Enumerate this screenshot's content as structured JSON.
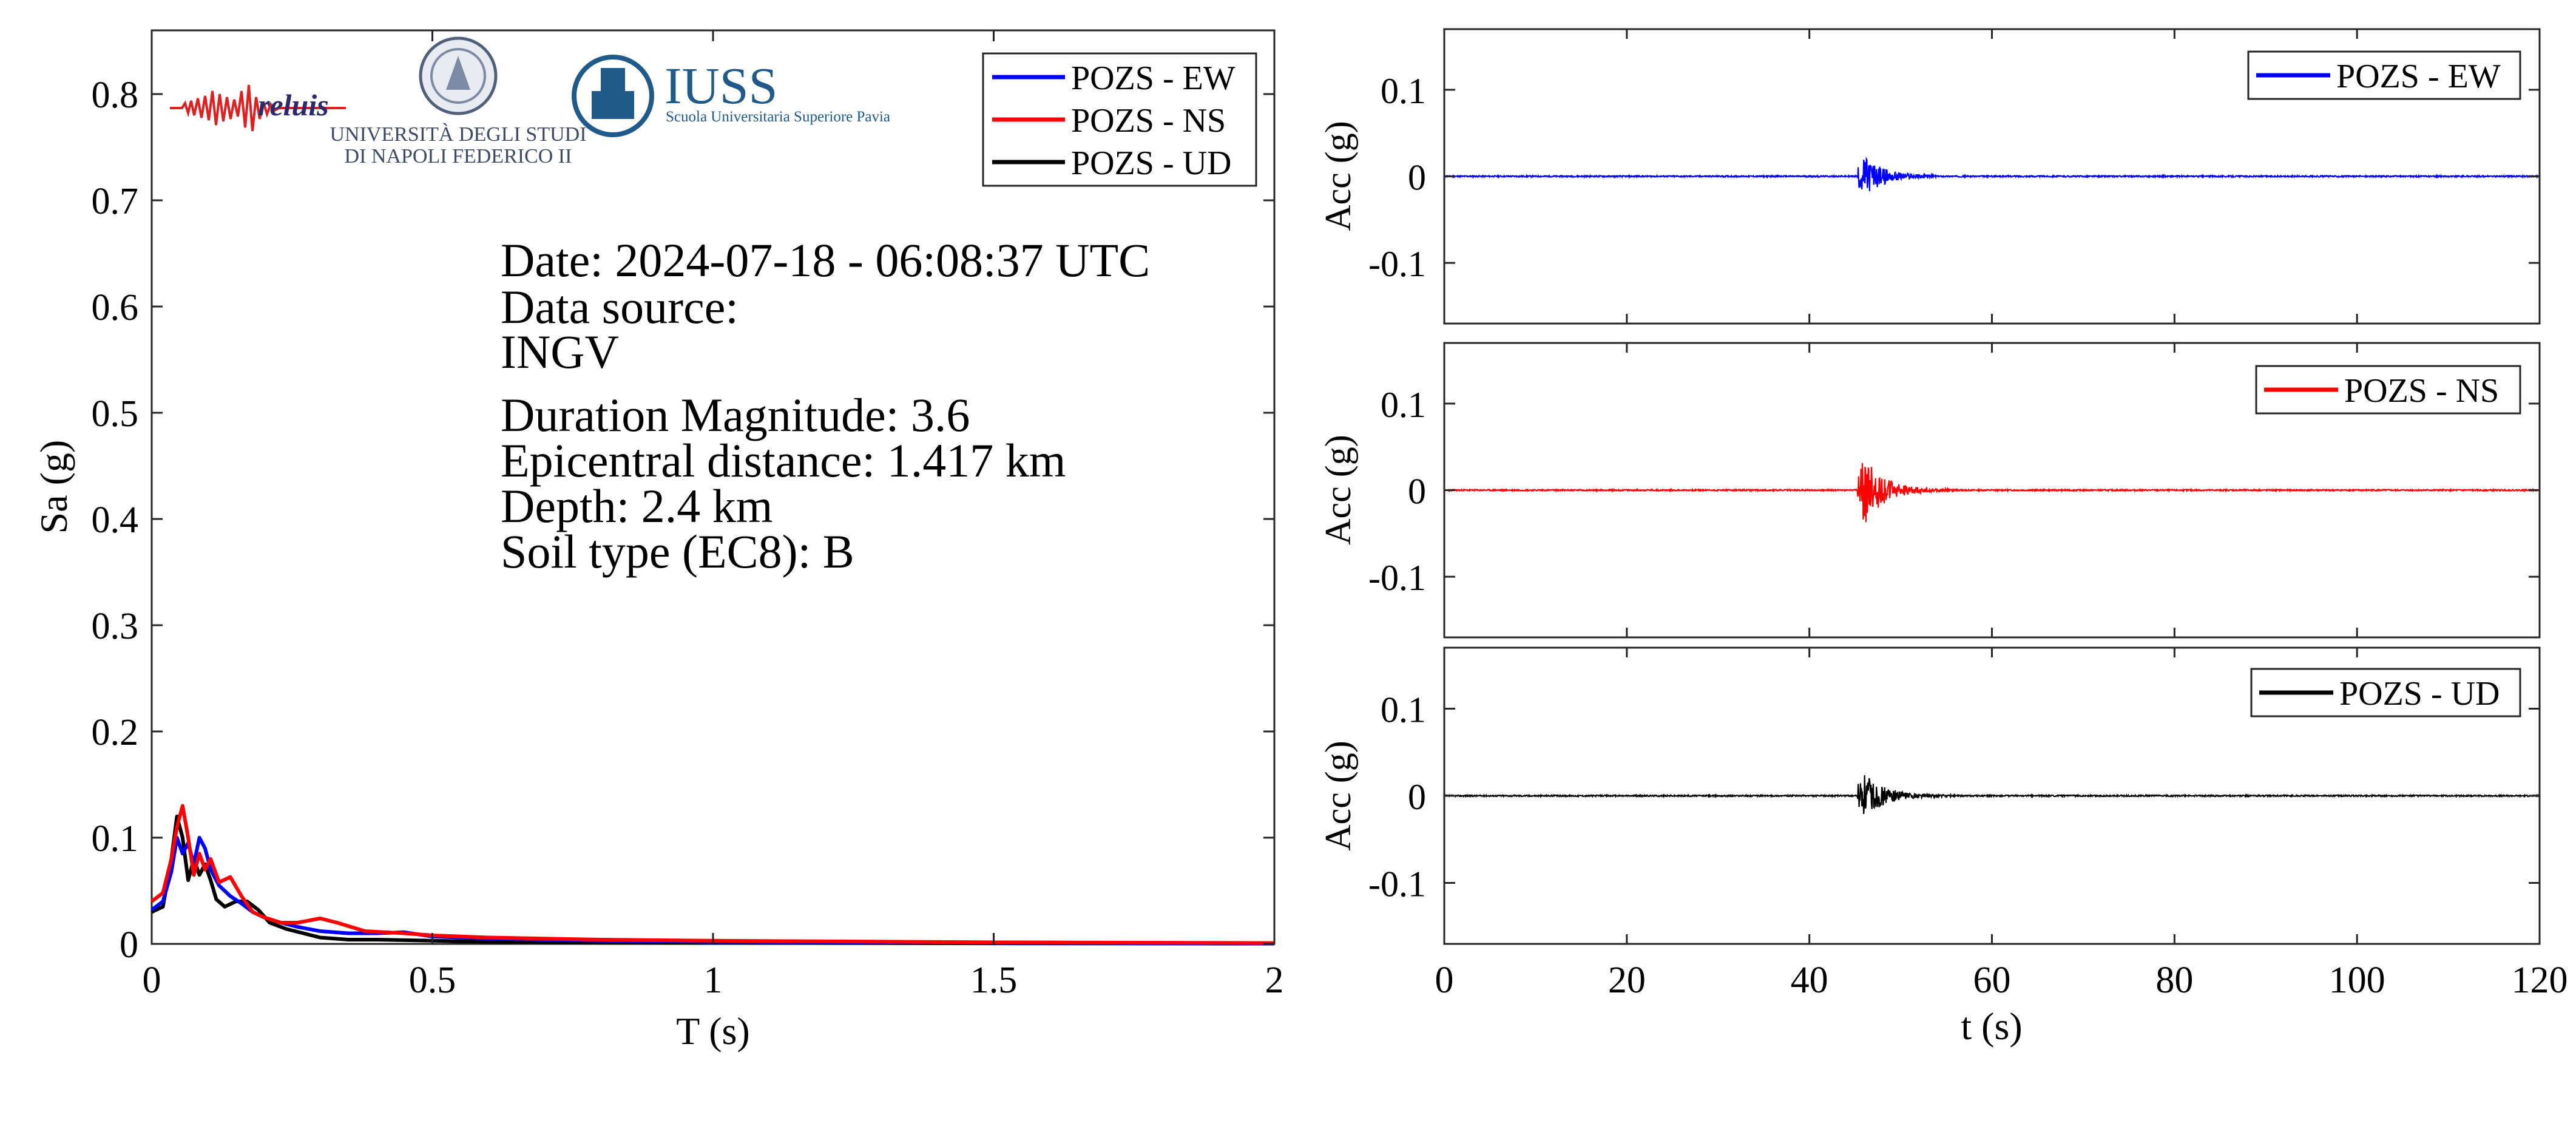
{
  "colors": {
    "ew": "#0000ff",
    "ns": "#ff0000",
    "ud": "#000000",
    "iuss": "#1f5a8a",
    "reluis": "#2a2a6e"
  },
  "logos": {
    "reluis": "reluis",
    "unina_line1": "UNIVERSITÀ DEGLI STUDI",
    "unina_line2": "DI NAPOLI FEDERICO II",
    "iuss_title": "IUSS",
    "iuss_subtitle": "Scuola Universitaria Superiore Pavia"
  },
  "info": {
    "date": "Date: 2024-07-18 - 06:08:37 UTC",
    "source_label": "Data source:",
    "source": "INGV",
    "magnitude": "Duration Magnitude: 3.6",
    "distance": "Epicentral distance: 1.417 km",
    "depth": "Depth: 2.4 km",
    "soil": "Soil type (EC8): B"
  },
  "chart_data": [
    {
      "id": "spectrum",
      "type": "line",
      "title": "",
      "xlabel": "T (s)",
      "ylabel": "Sa (g)",
      "xlim": [
        0,
        2
      ],
      "ylim": [
        0,
        0.86
      ],
      "xticks": [
        0,
        0.5,
        1,
        1.5,
        2
      ],
      "xtick_labels": [
        "0",
        "0.5",
        "1",
        "1.5",
        "2"
      ],
      "yticks": [
        0,
        0.1,
        0.2,
        0.3,
        0.4,
        0.5,
        0.6,
        0.7,
        0.8
      ],
      "ytick_labels": [
        "0",
        "0.1",
        "0.2",
        "0.3",
        "0.4",
        "0.5",
        "0.6",
        "0.7",
        "0.8"
      ],
      "legend": "top-right",
      "grid": false,
      "series": [
        {
          "name": "POZS - EW",
          "color": "#0000ff",
          "x": [
            0,
            0.02,
            0.035,
            0.045,
            0.055,
            0.065,
            0.075,
            0.085,
            0.095,
            0.105,
            0.12,
            0.14,
            0.16,
            0.18,
            0.2,
            0.23,
            0.26,
            0.3,
            0.35,
            0.4,
            0.45,
            0.5,
            0.6,
            0.8,
            1.0,
            1.5,
            2.0
          ],
          "y": [
            0.032,
            0.04,
            0.068,
            0.1,
            0.085,
            0.095,
            0.075,
            0.1,
            0.09,
            0.07,
            0.055,
            0.045,
            0.038,
            0.03,
            0.025,
            0.02,
            0.016,
            0.012,
            0.01,
            0.01,
            0.011,
            0.007,
            0.005,
            0.003,
            0.002,
            0.001,
            0.0005
          ]
        },
        {
          "name": "POZS - NS",
          "color": "#ff0000",
          "x": [
            0,
            0.02,
            0.035,
            0.045,
            0.055,
            0.065,
            0.075,
            0.085,
            0.095,
            0.105,
            0.12,
            0.14,
            0.16,
            0.18,
            0.2,
            0.23,
            0.26,
            0.3,
            0.33,
            0.38,
            0.45,
            0.5,
            0.6,
            0.8,
            1.0,
            1.5,
            2.0
          ],
          "y": [
            0.04,
            0.048,
            0.08,
            0.11,
            0.13,
            0.1,
            0.065,
            0.085,
            0.07,
            0.08,
            0.058,
            0.063,
            0.045,
            0.03,
            0.025,
            0.02,
            0.02,
            0.024,
            0.02,
            0.012,
            0.01,
            0.008,
            0.006,
            0.004,
            0.003,
            0.0015,
            0.0008
          ]
        },
        {
          "name": "POZS - UD",
          "color": "#000000",
          "x": [
            0,
            0.02,
            0.035,
            0.045,
            0.055,
            0.065,
            0.075,
            0.085,
            0.095,
            0.105,
            0.115,
            0.13,
            0.15,
            0.17,
            0.19,
            0.21,
            0.24,
            0.27,
            0.3,
            0.35,
            0.4,
            0.5,
            0.6,
            0.8,
            1.0,
            1.5,
            2.0
          ],
          "y": [
            0.03,
            0.035,
            0.08,
            0.12,
            0.1,
            0.06,
            0.08,
            0.065,
            0.075,
            0.06,
            0.042,
            0.035,
            0.04,
            0.04,
            0.032,
            0.02,
            0.014,
            0.01,
            0.006,
            0.004,
            0.004,
            0.003,
            0.002,
            0.0015,
            0.001,
            0.0005,
            0.0003
          ]
        }
      ]
    },
    {
      "id": "acc-ew",
      "type": "line",
      "title": "",
      "xlabel": "",
      "ylabel": "Acc (g)",
      "xlim": [
        0,
        120
      ],
      "ylim": [
        -0.17,
        0.17
      ],
      "yticks": [
        -0.1,
        0,
        0.1
      ],
      "ytick_labels": [
        "-0.1",
        "0",
        "0.1"
      ],
      "legend": "top-right",
      "series": [
        {
          "name": "POZS - EW",
          "color": "#0000ff",
          "event_start": 45.3,
          "peak": 0.022,
          "duration_to": 54
        }
      ]
    },
    {
      "id": "acc-ns",
      "type": "line",
      "title": "",
      "xlabel": "",
      "ylabel": "Acc (g)",
      "xlim": [
        0,
        120
      ],
      "ylim": [
        -0.17,
        0.17
      ],
      "yticks": [
        -0.1,
        0,
        0.1
      ],
      "ytick_labels": [
        "-0.1",
        "0",
        "0.1"
      ],
      "legend": "top-right",
      "series": [
        {
          "name": "POZS - NS",
          "color": "#ff0000",
          "event_start": 45.3,
          "peak": 0.038,
          "duration_to": 56
        }
      ]
    },
    {
      "id": "acc-ud",
      "type": "line",
      "title": "",
      "xlabel": "t (s)",
      "ylabel": "Acc (g)",
      "xlim": [
        0,
        120
      ],
      "ylim": [
        -0.17,
        0.17
      ],
      "xticks": [
        0,
        20,
        40,
        60,
        80,
        100,
        120
      ],
      "xtick_labels": [
        "0",
        "20",
        "40",
        "60",
        "80",
        "100",
        "120"
      ],
      "yticks": [
        -0.1,
        0,
        0.1
      ],
      "ytick_labels": [
        "-0.1",
        "0",
        "0.1"
      ],
      "legend": "top-right",
      "series": [
        {
          "name": "POZS - UD",
          "color": "#000000",
          "event_start": 45.3,
          "peak": 0.025,
          "duration_to": 56
        }
      ]
    }
  ]
}
